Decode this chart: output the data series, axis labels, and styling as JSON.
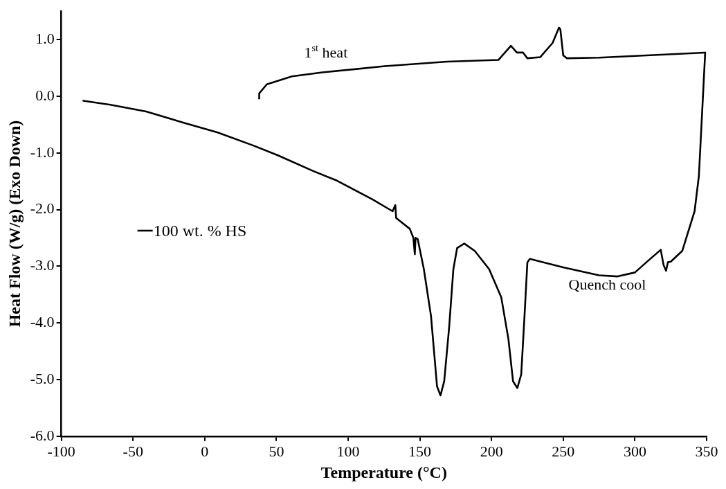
{
  "chart_data": {
    "type": "line",
    "xlabel": "Temperature (°C)",
    "ylabel": "Heat Flow (W/g) (Exo Down)",
    "xlim": [
      -100,
      350
    ],
    "xticks": [
      -100,
      -50,
      0,
      50,
      100,
      150,
      200,
      250,
      300,
      350
    ],
    "ylim": [
      -6,
      1.5
    ],
    "yticks": [
      {
        "value": -6,
        "label": "-6.0"
      },
      {
        "value": -5,
        "label": "-5.0"
      },
      {
        "value": -4,
        "label": "-4.0"
      },
      {
        "value": -3,
        "label": "-3.0"
      },
      {
        "value": -2,
        "label": "-2.0"
      },
      {
        "value": -1,
        "label": "-1.0"
      },
      {
        "value": 0,
        "label": "0.0"
      },
      {
        "value": 1,
        "label": "1.0"
      }
    ],
    "grid": false,
    "legend": "left",
    "marker": "none",
    "line_style": "solid",
    "series": [
      {
        "name": "100 wt. % HS",
        "color": "#000000",
        "x": [
          37.9,
          38,
          43.3,
          60.8,
          82,
          125.6,
          169,
          204.8,
          213.5,
          217.7,
          222,
          225,
          234,
          242.6,
          247,
          248,
          250,
          252.6,
          275,
          308,
          349,
          344.6,
          341.6,
          333,
          325,
          323,
          321.7,
          320,
          318,
          308,
          300,
          288,
          275,
          250,
          226.7,
          225,
          223,
          220.7,
          218,
          215,
          211.8,
          206.8,
          198.3,
          188.3,
          181,
          176,
          173.4,
          170.4,
          167,
          164.4,
          162,
          157.8,
          152.8,
          148.5,
          147,
          146.5,
          145.5,
          143,
          133.5,
          132.9,
          131,
          117,
          92.2,
          75.6,
          50.7,
          33.9,
          9,
          -15.9,
          -40.8,
          -65.8,
          -84.7
        ],
        "values": [
          -0.04,
          0.05,
          0.21,
          0.35,
          0.42,
          0.53,
          0.61,
          0.64,
          0.89,
          0.77,
          0.77,
          0.67,
          0.69,
          0.94,
          1.21,
          1.18,
          0.72,
          0.67,
          0.68,
          0.72,
          0.77,
          -1.41,
          -2.03,
          -2.73,
          -2.92,
          -2.93,
          -3.08,
          -2.98,
          -2.71,
          -2.93,
          -3.11,
          -3.18,
          -3.16,
          -3.02,
          -2.87,
          -2.93,
          -3.88,
          -4.91,
          -5.15,
          -5.03,
          -4.29,
          -3.55,
          -3.05,
          -2.73,
          -2.6,
          -2.68,
          -3.05,
          -4.09,
          -5.03,
          -5.28,
          -5.12,
          -3.88,
          -3.05,
          -2.52,
          -2.5,
          -2.79,
          -2.5,
          -2.34,
          -2.15,
          -1.92,
          -2.03,
          -1.82,
          -1.49,
          -1.32,
          -1.04,
          -0.87,
          -0.64,
          -0.46,
          -0.27,
          -0.15,
          -0.08
        ]
      }
    ],
    "annotations": [
      "1$^{st}$ heat",
      "Quench cool"
    ]
  }
}
